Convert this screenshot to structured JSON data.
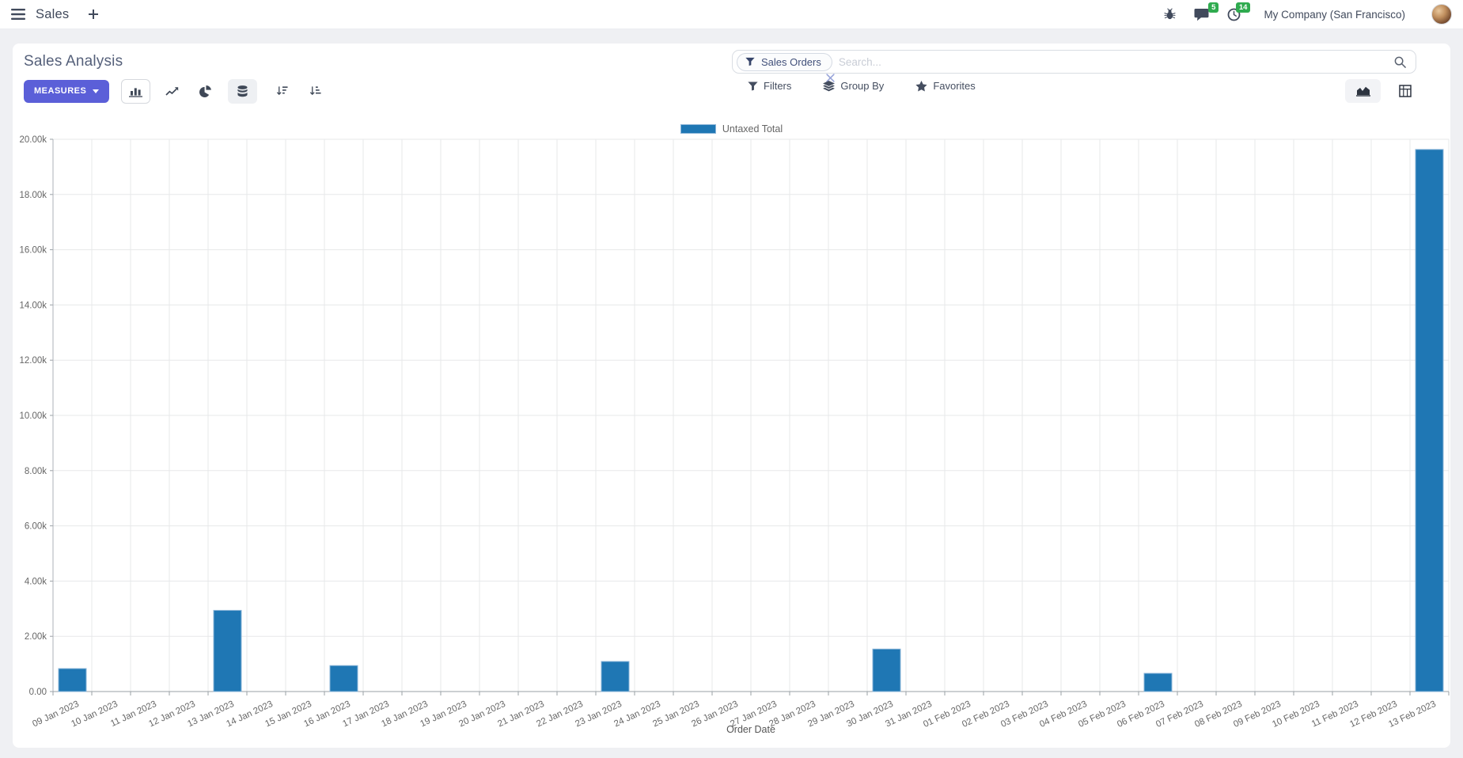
{
  "colors": {
    "accent": "#5B5FD8",
    "badge_green": "#2FAB4F",
    "bar": "#1f77b4",
    "bar_border": "#8ab4d8"
  },
  "navbar": {
    "app_name": "Sales",
    "messages_badge": "5",
    "activities_badge": "14",
    "company": "My Company (San Francisco)"
  },
  "control_panel": {
    "title": "Sales Analysis",
    "measures_label": "MEASURES",
    "filters_label": "Filters",
    "group_by_label": "Group By",
    "favorites_label": "Favorites",
    "search": {
      "facet_label": "Sales Orders",
      "placeholder": "Search..."
    }
  },
  "chart_data": {
    "type": "bar",
    "title": "",
    "xlabel": "Order Date",
    "ylabel": "",
    "legend_position": "top",
    "grid": true,
    "ylim": [
      0,
      20000
    ],
    "y_step": 2000,
    "y_tick_labels": [
      "0.00",
      "2.00k",
      "4.00k",
      "6.00k",
      "8.00k",
      "10.00k",
      "12.00k",
      "14.00k",
      "16.00k",
      "18.00k",
      "20.00k"
    ],
    "categories": [
      "09 Jan 2023",
      "10 Jan 2023",
      "11 Jan 2023",
      "12 Jan 2023",
      "13 Jan 2023",
      "14 Jan 2023",
      "15 Jan 2023",
      "16 Jan 2023",
      "17 Jan 2023",
      "18 Jan 2023",
      "19 Jan 2023",
      "20 Jan 2023",
      "21 Jan 2023",
      "22 Jan 2023",
      "23 Jan 2023",
      "24 Jan 2023",
      "25 Jan 2023",
      "26 Jan 2023",
      "27 Jan 2023",
      "28 Jan 2023",
      "29 Jan 2023",
      "30 Jan 2023",
      "31 Jan 2023",
      "01 Feb 2023",
      "02 Feb 2023",
      "03 Feb 2023",
      "04 Feb 2023",
      "05 Feb 2023",
      "06 Feb 2023",
      "07 Feb 2023",
      "08 Feb 2023",
      "09 Feb 2023",
      "10 Feb 2023",
      "11 Feb 2023",
      "12 Feb 2023",
      "13 Feb 2023"
    ],
    "series": [
      {
        "name": "Untaxed Total",
        "values": [
          830,
          0,
          0,
          0,
          2940,
          0,
          0,
          940,
          0,
          0,
          0,
          0,
          0,
          0,
          1090,
          0,
          0,
          0,
          0,
          0,
          0,
          1540,
          0,
          0,
          0,
          0,
          0,
          0,
          660,
          0,
          0,
          0,
          0,
          0,
          0,
          19630
        ]
      }
    ]
  }
}
